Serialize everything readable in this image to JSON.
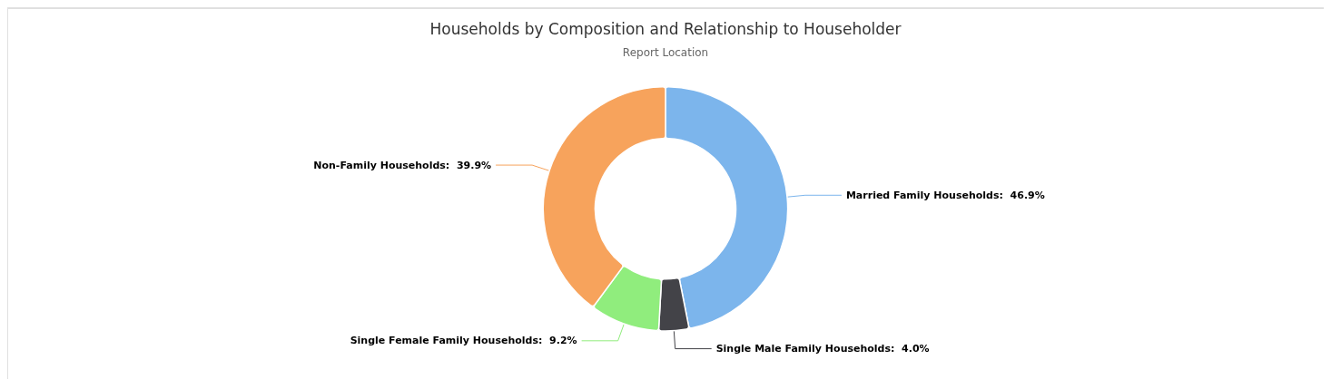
{
  "chart_data": {
    "type": "donut",
    "title": "Households by Composition and Relationship to Householder",
    "subtitle": "Report Location",
    "categories": [
      "Married Family Households",
      "Single Male Family Households",
      "Single Female Family Households",
      "Non-Family Households"
    ],
    "values": [
      46.9,
      4.0,
      9.2,
      39.9
    ],
    "colors": [
      "#7cb5ec",
      "#434348",
      "#90ed7d",
      "#f7a35c"
    ],
    "value_labels": [
      "46.9%",
      "4.0%",
      "9.2%",
      "39.9%"
    ],
    "legend": false
  }
}
